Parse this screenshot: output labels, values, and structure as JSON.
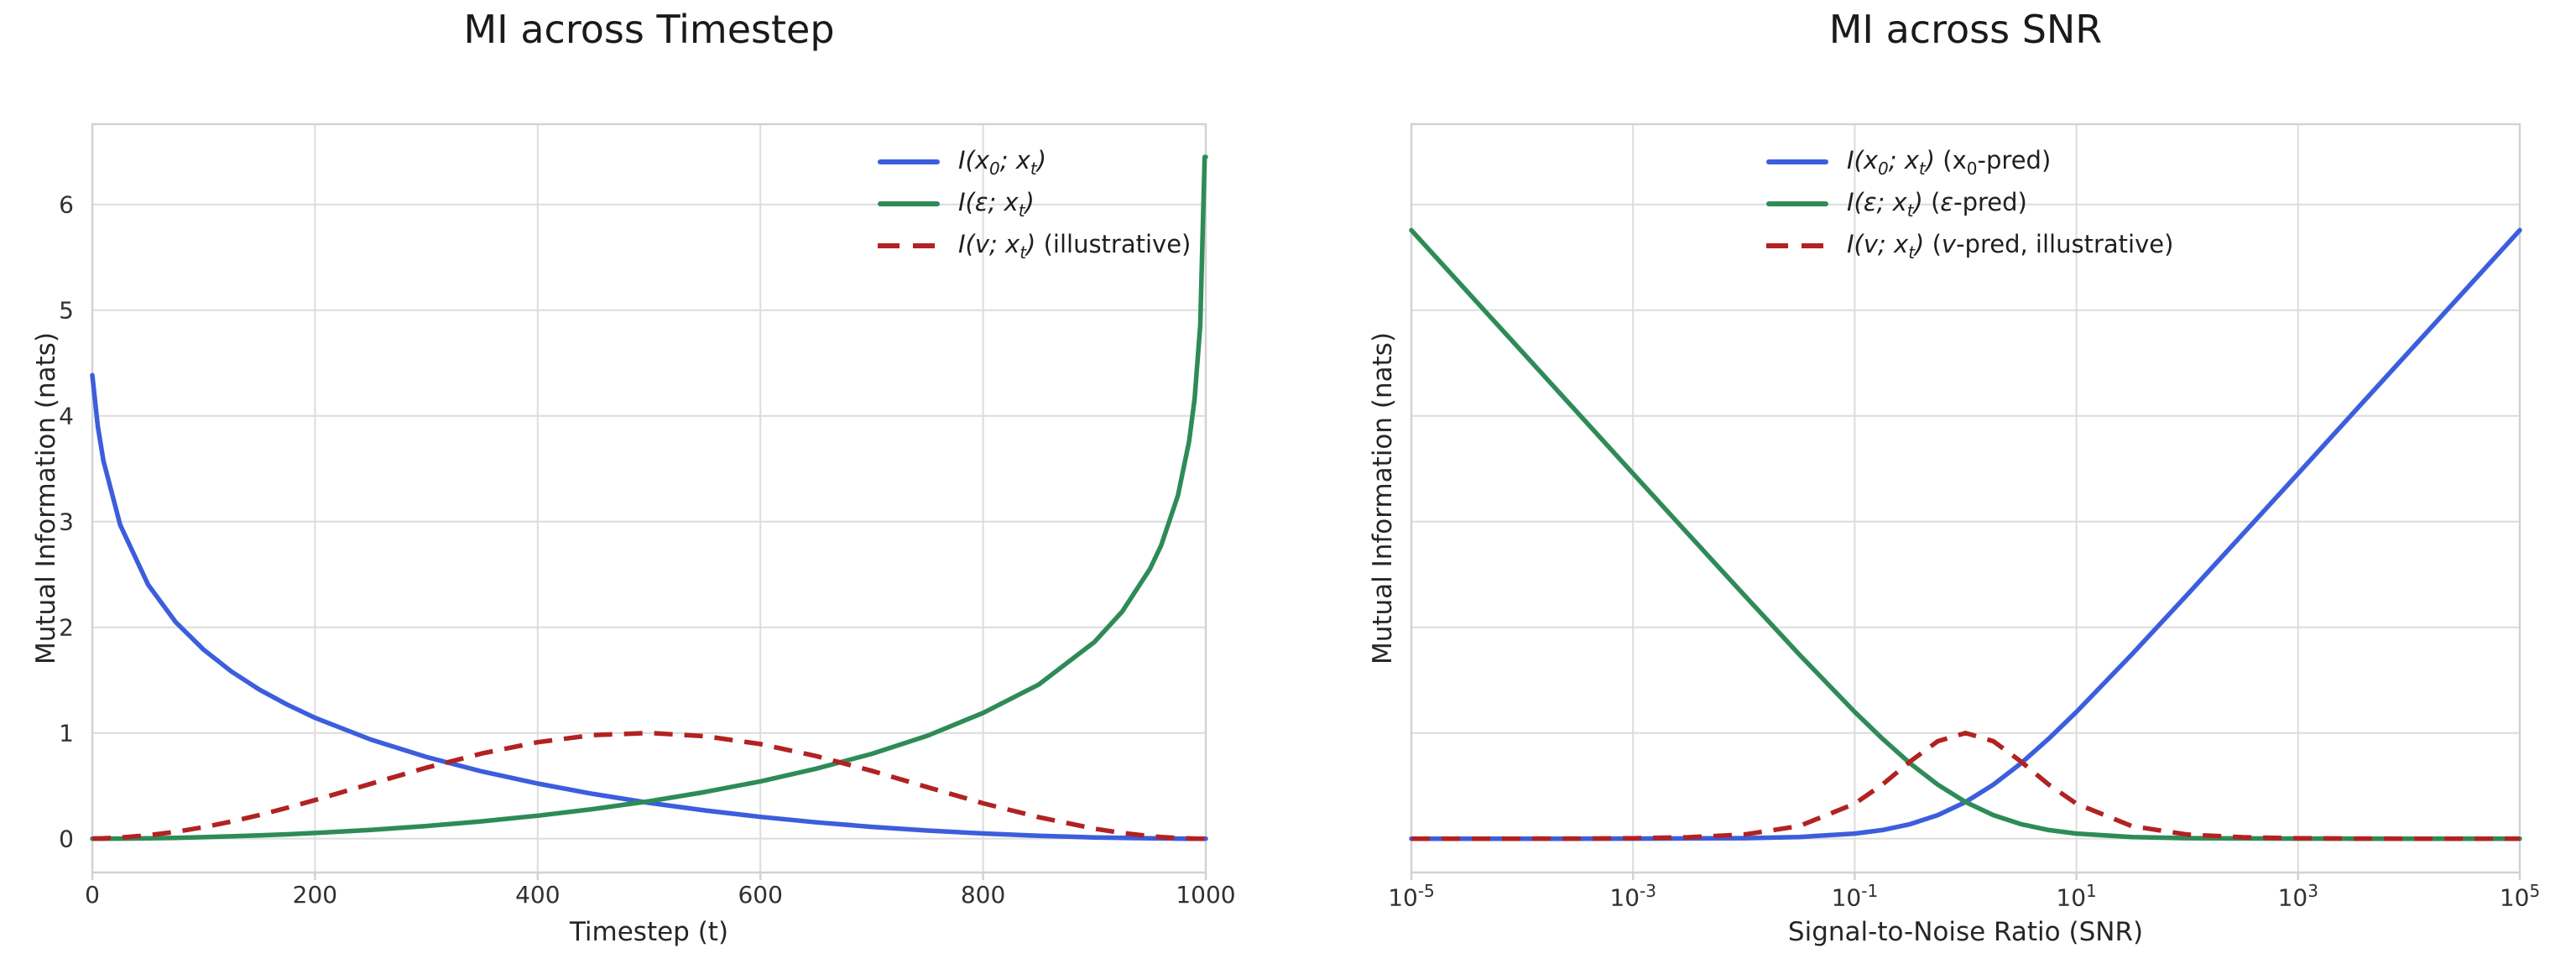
{
  "figure": {
    "background": "#ffffff",
    "text_color": "#262626",
    "grid_color": "#dcdcdc",
    "spine_color": "#d2d2d2"
  },
  "chart_data": [
    {
      "type": "line",
      "title": "MI across Timestep",
      "xlabel": "Timestep (t)",
      "ylabel": "Mutual Information (nats)",
      "xscale": "linear",
      "xlim": [
        0,
        1000
      ],
      "ylim": [
        -0.32,
        6.76
      ],
      "grid": true,
      "legend_position": "upper right inside, frameless",
      "xticks": [
        0,
        200,
        400,
        600,
        800,
        1000
      ],
      "xtick_labels": [
        "0",
        "200",
        "400",
        "600",
        "800",
        "1000"
      ],
      "yticks": [
        0,
        1,
        2,
        3,
        4,
        5,
        6
      ],
      "ytick_labels": [
        "0",
        "1",
        "2",
        "3",
        "4",
        "5",
        "6"
      ],
      "x": [
        0,
        5,
        10,
        25,
        50,
        75,
        100,
        125,
        150,
        175,
        200,
        250,
        300,
        350,
        400,
        450,
        500,
        550,
        600,
        650,
        700,
        750,
        800,
        850,
        900,
        925,
        950,
        960,
        975,
        985,
        990,
        995,
        999,
        1000
      ],
      "series": [
        {
          "math": "I(x_0; x_t)",
          "suffix": "",
          "color": "#3C5EDD",
          "style": "solid",
          "values": [
            4.385,
            3.899,
            3.574,
            2.969,
            2.405,
            2.048,
            1.788,
            1.581,
            1.411,
            1.269,
            1.144,
            0.938,
            0.773,
            0.636,
            0.521,
            0.423,
            0.339,
            0.267,
            0.206,
            0.155,
            0.112,
            0.077,
            0.049,
            0.028,
            0.012,
            0.007,
            0.003,
            0.002,
            0.001,
            0.0,
            0.0,
            0.0,
            0.0,
            0.0
          ]
        },
        {
          "math": "I(ε; x_t)",
          "suffix": "",
          "color": "#2E8B57",
          "style": "solid",
          "values": [
            0.0,
            0.0,
            0.0,
            0.001,
            0.004,
            0.008,
            0.014,
            0.022,
            0.031,
            0.041,
            0.054,
            0.083,
            0.12,
            0.164,
            0.217,
            0.28,
            0.354,
            0.441,
            0.542,
            0.662,
            0.802,
            0.974,
            1.19,
            1.459,
            1.86,
            2.149,
            2.553,
            2.776,
            3.246,
            3.757,
            4.161,
            4.854,
            6.45,
            6.45
          ]
        },
        {
          "math": "I(v; x_t)",
          "suffix": "(illustrative)",
          "color": "#B22222",
          "style": "dashed",
          "values": [
            0.001,
            0.002,
            0.003,
            0.011,
            0.032,
            0.065,
            0.109,
            0.162,
            0.223,
            0.292,
            0.365,
            0.519,
            0.671,
            0.806,
            0.913,
            0.98,
            1.0,
            0.97,
            0.895,
            0.782,
            0.642,
            0.487,
            0.335,
            0.203,
            0.094,
            0.054,
            0.024,
            0.015,
            0.006,
            0.002,
            0.001,
            0.0,
            0.0,
            0.0
          ]
        }
      ]
    },
    {
      "type": "line",
      "title": "MI across SNR",
      "xlabel": "Signal-to-Noise Ratio (SNR)",
      "ylabel": "Mutual Information (nats)",
      "xscale": "log",
      "xlim": [
        1e-05,
        100000.0
      ],
      "ylim": [
        -0.32,
        6.76
      ],
      "grid": true,
      "legend_position": "upper right inside, frameless",
      "xticks": [
        1e-05,
        0.001,
        0.1,
        10,
        1000,
        100000
      ],
      "xtick_labels": [
        "10^-5",
        "10^-3",
        "10^-1",
        "10^1",
        "10^3",
        "10^5"
      ],
      "yticks": [
        0,
        1,
        2,
        3,
        4,
        5,
        6
      ],
      "ytick_labels": [],
      "x": [
        1e-05,
        3.16e-05,
        0.0001,
        0.000316,
        0.001,
        0.00316,
        0.01,
        0.0316,
        0.1,
        0.178,
        0.316,
        0.562,
        1,
        1.78,
        3.16,
        5.62,
        10,
        31.6,
        100,
        316,
        1000,
        3162,
        10000,
        31623,
        100000
      ],
      "series": [
        {
          "math": "I(x_0; x_t)",
          "suffix": "(x_0-pred)",
          "color": "#3C5EDD",
          "style": "solid",
          "values": [
            0.0,
            0.0,
            0.0,
            0.0,
            0.001,
            0.002,
            0.005,
            0.016,
            0.048,
            0.082,
            0.137,
            0.223,
            0.347,
            0.511,
            0.713,
            0.945,
            1.199,
            1.743,
            2.308,
            2.88,
            3.454,
            4.03,
            4.606,
            5.181,
            5.757
          ]
        },
        {
          "math": "I(ε; x_t)",
          "suffix": "(ε-pred)",
          "color": "#2E8B57",
          "style": "solid",
          "values": [
            5.757,
            5.181,
            4.606,
            4.03,
            3.454,
            2.88,
            2.308,
            1.743,
            1.199,
            0.945,
            0.713,
            0.511,
            0.347,
            0.223,
            0.137,
            0.082,
            0.048,
            0.016,
            0.005,
            0.002,
            0.001,
            0.0,
            0.0,
            0.0,
            0.0
          ]
        },
        {
          "math": "I(v; x_t)",
          "suffix": "(v-pred, illustrative)",
          "color": "#B22222",
          "style": "dashed",
          "values": [
            0.0,
            0.0,
            0.0,
            0.001,
            0.004,
            0.013,
            0.039,
            0.119,
            0.331,
            0.513,
            0.73,
            0.922,
            1.0,
            0.922,
            0.73,
            0.513,
            0.331,
            0.119,
            0.039,
            0.013,
            0.004,
            0.001,
            0.0,
            0.0,
            0.0
          ]
        }
      ]
    }
  ]
}
